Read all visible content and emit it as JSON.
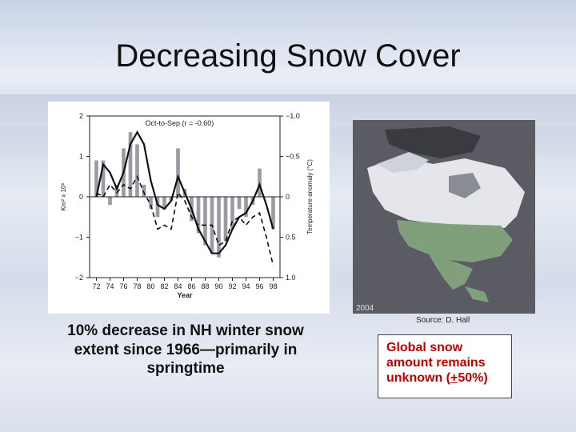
{
  "slide": {
    "title": "Decreasing Snow Cover",
    "left_caption": "10% decrease in NH winter snow extent since 1966—primarily in springtime",
    "source": "Source: D. Hall",
    "map_year": "2004",
    "right_box": {
      "line1": "Global snow",
      "line2": "amount remains",
      "line3a": "unknown (",
      "pm": "+",
      "line3b": "50%)"
    }
  },
  "chart_data": {
    "type": "bar",
    "annotation": "Oct-to-Sep (r = -0.60)",
    "xlabel": "Year",
    "ylabel_left": "Km² x 10⁶",
    "ylabel_right": "Temperature anomaly (°C)",
    "xlim": [
      1971,
      1999
    ],
    "ylim": [
      -2,
      2
    ],
    "y_ticks": [
      "2",
      "1",
      "0",
      "−1",
      "−2"
    ],
    "y_tick_values": [
      2,
      1,
      0,
      -1,
      -2
    ],
    "right_ticks": [
      "−1.0",
      "−0.5",
      "0",
      "0.5",
      "1.0"
    ],
    "right_tick_values": [
      -1.0,
      -0.5,
      0,
      0.5,
      1.0
    ],
    "x_ticks": [
      "72",
      "74",
      "76",
      "78",
      "80",
      "82",
      "84",
      "86",
      "88",
      "90",
      "92",
      "94",
      "96",
      "98"
    ],
    "x_tick_values": [
      1972,
      1974,
      1976,
      1978,
      1980,
      1982,
      1984,
      1986,
      1988,
      1990,
      1992,
      1994,
      1996,
      1998
    ],
    "years": [
      1972,
      1973,
      1974,
      1975,
      1976,
      1977,
      1978,
      1979,
      1980,
      1981,
      1982,
      1983,
      1984,
      1985,
      1986,
      1987,
      1988,
      1989,
      1990,
      1991,
      1992,
      1993,
      1994,
      1995,
      1996,
      1997,
      1998
    ],
    "series": [
      {
        "values": [
          0.9,
          0.9,
          -0.2,
          0.3,
          1.2,
          1.6,
          1.3,
          0.3,
          -0.3,
          -0.5,
          -0.3,
          -0.1,
          1.2,
          0.2,
          -0.6,
          -0.9,
          -1.2,
          -1.4,
          -1.5,
          -1.1,
          -0.8,
          -0.3,
          -0.5,
          -0.2,
          0.7,
          0.0,
          -0.8
        ]
      },
      {
        "values": [
          0.0,
          0.8,
          0.6,
          0.2,
          0.6,
          1.3,
          1.6,
          1.3,
          0.4,
          -0.2,
          -0.3,
          -0.1,
          0.5,
          0.1,
          -0.3,
          -0.8,
          -1.1,
          -1.4,
          -1.4,
          -1.2,
          -0.8,
          -0.5,
          -0.4,
          -0.1,
          0.3,
          -0.2,
          -0.8
        ]
      },
      {
        "values": [
          0.1,
          0.0,
          0.3,
          0.1,
          0.3,
          0.2,
          0.5,
          0.1,
          -0.2,
          -0.8,
          -0.7,
          -0.8,
          0.1,
          -0.1,
          -0.5,
          -0.7,
          -0.7,
          -0.7,
          -1.2,
          -1.1,
          -0.6,
          -0.5,
          -0.7,
          -0.5,
          -0.4,
          -1.0,
          -1.7
        ]
      }
    ]
  }
}
